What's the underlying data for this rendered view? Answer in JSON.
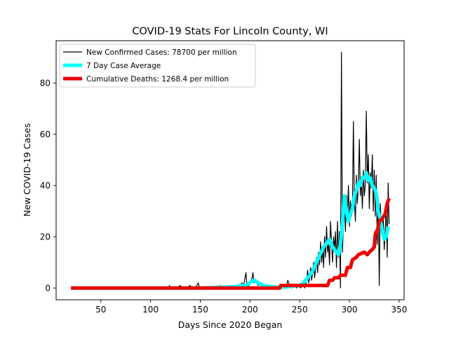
{
  "chart_data": {
    "type": "line",
    "title": "COVID-19 Stats For Lincoln County, WI",
    "xlabel": "Days Since 2020 Began",
    "ylabel": "New COVID-19 Cases",
    "xlim": [
      5,
      355
    ],
    "ylim": [
      -4.6,
      96.5
    ],
    "xticks": [
      50,
      100,
      150,
      200,
      250,
      300,
      350
    ],
    "yticks": [
      0,
      20,
      40,
      60,
      80
    ],
    "grid": false,
    "legend_position": "top-left",
    "series": [
      {
        "name": "New Confirmed Cases: 78700 per million",
        "color": "#000000",
        "points": [
          [
            20,
            0
          ],
          [
            30,
            0
          ],
          [
            40,
            0
          ],
          [
            50,
            0
          ],
          [
            60,
            0
          ],
          [
            70,
            0
          ],
          [
            80,
            0
          ],
          [
            90,
            0
          ],
          [
            100,
            0
          ],
          [
            110,
            0
          ],
          [
            118,
            0
          ],
          [
            119,
            1
          ],
          [
            120,
            0
          ],
          [
            125,
            0
          ],
          [
            130,
            1
          ],
          [
            131,
            0
          ],
          [
            135,
            0
          ],
          [
            140,
            1
          ],
          [
            141,
            0
          ],
          [
            145,
            0
          ],
          [
            148,
            2
          ],
          [
            149,
            0
          ],
          [
            155,
            0
          ],
          [
            160,
            0
          ],
          [
            165,
            0
          ],
          [
            170,
            1
          ],
          [
            171,
            0
          ],
          [
            175,
            0
          ],
          [
            180,
            1
          ],
          [
            181,
            0
          ],
          [
            185,
            0
          ],
          [
            188,
            1
          ],
          [
            189,
            0
          ],
          [
            192,
            2
          ],
          [
            193,
            0
          ],
          [
            196,
            6
          ],
          [
            197,
            0
          ],
          [
            199,
            1
          ],
          [
            201,
            2
          ],
          [
            203,
            6
          ],
          [
            204,
            2
          ],
          [
            206,
            3
          ],
          [
            208,
            1
          ],
          [
            210,
            2
          ],
          [
            212,
            0
          ],
          [
            215,
            1
          ],
          [
            217,
            0
          ],
          [
            220,
            1
          ],
          [
            222,
            0
          ],
          [
            225,
            1
          ],
          [
            228,
            0
          ],
          [
            230,
            1
          ],
          [
            232,
            0
          ],
          [
            234,
            1
          ],
          [
            236,
            0
          ],
          [
            238,
            3
          ],
          [
            240,
            1
          ],
          [
            242,
            0
          ],
          [
            245,
            1
          ],
          [
            247,
            0
          ],
          [
            249,
            1
          ],
          [
            251,
            0
          ],
          [
            253,
            2
          ],
          [
            255,
            0
          ],
          [
            257,
            3
          ],
          [
            258,
            7
          ],
          [
            259,
            2
          ],
          [
            260,
            4
          ],
          [
            261,
            8
          ],
          [
            262,
            3
          ],
          [
            263,
            6
          ],
          [
            264,
            10
          ],
          [
            265,
            4
          ],
          [
            266,
            8
          ],
          [
            267,
            12
          ],
          [
            268,
            6
          ],
          [
            269,
            14
          ],
          [
            270,
            9
          ],
          [
            271,
            18
          ],
          [
            272,
            10
          ],
          [
            273,
            16
          ],
          [
            274,
            8
          ],
          [
            275,
            20
          ],
          [
            276,
            12
          ],
          [
            277,
            24
          ],
          [
            278,
            14
          ],
          [
            279,
            17
          ],
          [
            280,
            9
          ],
          [
            281,
            26
          ],
          [
            282,
            18
          ],
          [
            283,
            10
          ],
          [
            284,
            20
          ],
          [
            285,
            15
          ],
          [
            286,
            22
          ],
          [
            287,
            8
          ],
          [
            288,
            26
          ],
          [
            289,
            12
          ],
          [
            290,
            22
          ],
          [
            291,
            0
          ],
          [
            292,
            92
          ],
          [
            293,
            14
          ],
          [
            294,
            26
          ],
          [
            295,
            34
          ],
          [
            296,
            22
          ],
          [
            297,
            36
          ],
          [
            298,
            28
          ],
          [
            299,
            40
          ],
          [
            300,
            24
          ],
          [
            301,
            34
          ],
          [
            302,
            28
          ],
          [
            303,
            30
          ],
          [
            304,
            65
          ],
          [
            305,
            34
          ],
          [
            306,
            26
          ],
          [
            307,
            44
          ],
          [
            308,
            33
          ],
          [
            309,
            40
          ],
          [
            310,
            58
          ],
          [
            311,
            36
          ],
          [
            312,
            42
          ],
          [
            313,
            31
          ],
          [
            314,
            46
          ],
          [
            315,
            36
          ],
          [
            316,
            40
          ],
          [
            317,
            69
          ],
          [
            318,
            41
          ],
          [
            319,
            52
          ],
          [
            320,
            31
          ],
          [
            321,
            45
          ],
          [
            322,
            39
          ],
          [
            323,
            52
          ],
          [
            324,
            30
          ],
          [
            325,
            46
          ],
          [
            326,
            28
          ],
          [
            327,
            44
          ],
          [
            328,
            17
          ],
          [
            329,
            35
          ],
          [
            330,
            1
          ],
          [
            331,
            33
          ],
          [
            332,
            25
          ],
          [
            333,
            22
          ],
          [
            334,
            28
          ],
          [
            335,
            15
          ],
          [
            336,
            22
          ],
          [
            337,
            32
          ],
          [
            338,
            12
          ],
          [
            339,
            41
          ],
          [
            340,
            25
          ]
        ]
      },
      {
        "name": "7 Day Case Average",
        "color": "#00ffff",
        "points": [
          [
            20,
            0
          ],
          [
            50,
            0
          ],
          [
            100,
            0
          ],
          [
            150,
            0
          ],
          [
            185,
            0.5
          ],
          [
            190,
            1
          ],
          [
            195,
            0.8
          ],
          [
            198,
            1.5
          ],
          [
            202,
            2.7
          ],
          [
            205,
            3
          ],
          [
            208,
            2
          ],
          [
            212,
            1.2
          ],
          [
            216,
            0.8
          ],
          [
            220,
            0.6
          ],
          [
            225,
            0.3
          ],
          [
            230,
            0.4
          ],
          [
            235,
            0.3
          ],
          [
            240,
            0.6
          ],
          [
            245,
            0.8
          ],
          [
            250,
            1
          ],
          [
            253,
            1.6
          ],
          [
            256,
            3
          ],
          [
            259,
            4.5
          ],
          [
            262,
            6
          ],
          [
            265,
            8.5
          ],
          [
            268,
            11
          ],
          [
            271,
            13.5
          ],
          [
            274,
            16
          ],
          [
            277,
            17.5
          ],
          [
            280,
            19
          ],
          [
            283,
            16
          ],
          [
            286,
            14.5
          ],
          [
            289,
            13
          ],
          [
            291,
            17
          ],
          [
            293,
            25
          ],
          [
            295,
            36
          ],
          [
            297,
            30
          ],
          [
            299,
            26
          ],
          [
            301,
            29
          ],
          [
            303,
            31
          ],
          [
            305,
            36
          ],
          [
            307,
            38
          ],
          [
            309,
            41
          ],
          [
            311,
            40
          ],
          [
            313,
            43
          ],
          [
            315,
            43
          ],
          [
            317,
            45
          ],
          [
            319,
            42
          ],
          [
            321,
            43
          ],
          [
            323,
            40
          ],
          [
            325,
            39
          ],
          [
            327,
            37
          ],
          [
            329,
            30
          ],
          [
            331,
            27
          ],
          [
            333,
            22
          ],
          [
            335,
            19
          ],
          [
            337,
            20
          ],
          [
            339,
            24
          ]
        ]
      },
      {
        "name": "Cumulative Deaths: 1268.4 per million",
        "color": "#ee0000",
        "points": [
          [
            20,
            0
          ],
          [
            230,
            0
          ],
          [
            231,
            1
          ],
          [
            278,
            1
          ],
          [
            280,
            3
          ],
          [
            283,
            3
          ],
          [
            285,
            4
          ],
          [
            289,
            4
          ],
          [
            291,
            5
          ],
          [
            296,
            5
          ],
          [
            298,
            8
          ],
          [
            301,
            8
          ],
          [
            303,
            11
          ],
          [
            307,
            12
          ],
          [
            309,
            13
          ],
          [
            315,
            14
          ],
          [
            318,
            13
          ],
          [
            320,
            14
          ],
          [
            323,
            15
          ],
          [
            325,
            16
          ],
          [
            326,
            21
          ],
          [
            327,
            22
          ],
          [
            328,
            22
          ],
          [
            329,
            24
          ],
          [
            330,
            26
          ],
          [
            333,
            27
          ],
          [
            336,
            29
          ],
          [
            338,
            33
          ],
          [
            340,
            35
          ]
        ]
      }
    ]
  }
}
